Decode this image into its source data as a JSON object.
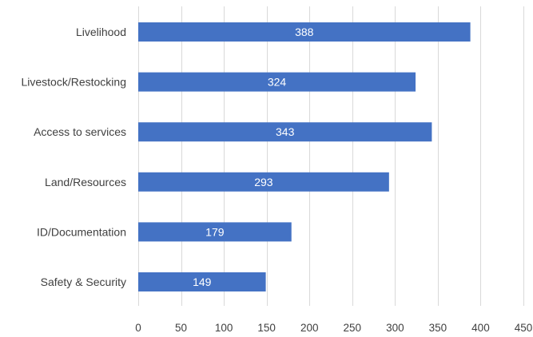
{
  "chart_data": {
    "type": "bar",
    "orientation": "horizontal",
    "categories": [
      "Livelihood",
      "Livestock/Restocking",
      "Access to services",
      "Land/Resources",
      "ID/Documentation",
      "Safety & Security"
    ],
    "values": [
      388,
      324,
      343,
      293,
      179,
      149
    ],
    "xlim": [
      0,
      450
    ],
    "xticks": [
      0,
      50,
      100,
      150,
      200,
      250,
      300,
      350,
      400,
      450
    ],
    "grid": "vertical",
    "data_labels": true,
    "bar_color": "#4472c4",
    "title": "",
    "xlabel": "",
    "ylabel": ""
  }
}
